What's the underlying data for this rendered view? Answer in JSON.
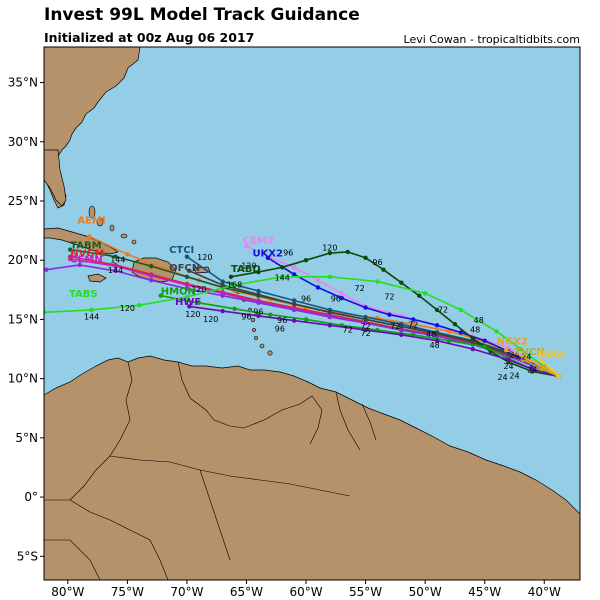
{
  "header": {
    "title": "Invest 99L Model Track Guidance",
    "subtitle": "Initialized at 00z Aug 06 2017",
    "credit": "Levi Cowan - tropicaltidbits.com"
  },
  "colors": {
    "ocean": "#94cde6",
    "land": "#b5926a",
    "border": "#000000"
  },
  "map": {
    "lon_range": [
      -82,
      -37
    ],
    "lat_range": [
      -7,
      38
    ],
    "lon_ticks": [
      {
        "v": -80,
        "label": "80°W"
      },
      {
        "v": -75,
        "label": "75°W"
      },
      {
        "v": -70,
        "label": "70°W"
      },
      {
        "v": -65,
        "label": "65°W"
      },
      {
        "v": -60,
        "label": "60°W"
      },
      {
        "v": -55,
        "label": "55°W"
      },
      {
        "v": -50,
        "label": "50°W"
      },
      {
        "v": -45,
        "label": "45°W"
      },
      {
        "v": -40,
        "label": "40°W"
      }
    ],
    "lat_ticks": [
      {
        "v": 35,
        "label": "35°N"
      },
      {
        "v": 30,
        "label": "30°N"
      },
      {
        "v": 25,
        "label": "25°N"
      },
      {
        "v": 20,
        "label": "20°N"
      },
      {
        "v": 15,
        "label": "15°N"
      },
      {
        "v": 10,
        "label": "10°N"
      },
      {
        "v": 5,
        "label": "5°N"
      },
      {
        "v": 0,
        "label": "0°"
      },
      {
        "v": -5,
        "label": "5°S"
      }
    ]
  },
  "chart_data": {
    "type": "line",
    "xlabel": "",
    "ylabel": "",
    "series": [
      {
        "name": "AEMI",
        "color": "#f07820",
        "lon": [
          -38.8,
          -41,
          -43,
          -45.5,
          -48,
          -51,
          -54,
          -57,
          -60,
          -63,
          -66,
          -69,
          -72,
          -75,
          -78.2
        ],
        "lat": [
          10.2,
          11.3,
          12.3,
          13.3,
          14,
          14.6,
          15.1,
          15.5,
          16,
          16.7,
          17.4,
          18.3,
          19.3,
          20.5,
          22
        ]
      },
      {
        "name": "TABM",
        "color": "#1a5c1a",
        "lon": [
          -38.8,
          -41,
          -43,
          -46,
          -49,
          -52,
          -55,
          -58,
          -61,
          -64,
          -67,
          -70,
          -73,
          -76,
          -79.8
        ],
        "lat": [
          10.2,
          11.2,
          12.2,
          13.2,
          13.9,
          14.4,
          15,
          15.6,
          16.3,
          17,
          17.7,
          18.6,
          19.5,
          20.3,
          20.9
        ]
      },
      {
        "name": "NVGM",
        "color": "#d42a2a",
        "lon": [
          -38.8,
          -41,
          -43,
          -46,
          -49,
          -52,
          -55,
          -58,
          -61,
          -64,
          -67,
          -70,
          -73,
          -76,
          -79.8
        ],
        "lat": [
          10.2,
          11.2,
          12,
          13,
          13.7,
          14.2,
          14.8,
          15.4,
          16,
          16.6,
          17.3,
          18,
          18.8,
          19.6,
          20.3
        ]
      },
      {
        "name": "CEMN",
        "color": "#c020c0",
        "lon": [
          -38.8,
          -41,
          -43,
          -46,
          -49,
          -52,
          -55,
          -58,
          -61,
          -64,
          -67,
          -70,
          -73,
          -76,
          -79.8
        ],
        "lat": [
          10.2,
          11.1,
          11.9,
          12.9,
          13.6,
          14.1,
          14.7,
          15.3,
          15.9,
          16.5,
          17.2,
          17.9,
          18.7,
          19.5,
          20.1
        ]
      },
      {
        "name": "",
        "color": "#8a2be2",
        "lon": [
          -38.8,
          -41,
          -43,
          -46,
          -49,
          -52,
          -55,
          -58,
          -61,
          -64,
          -67,
          -70,
          -73,
          -76,
          -79,
          -81.8
        ],
        "lat": [
          10.2,
          11.1,
          11.9,
          12.9,
          13.6,
          14.1,
          14.7,
          15.2,
          15.8,
          16.4,
          17,
          17.6,
          18.3,
          19.1,
          19.6,
          19.2
        ]
      },
      {
        "name": "CTCI",
        "color": "#105880",
        "lon": [
          -38.8,
          -41,
          -43,
          -46,
          -49,
          -52,
          -55,
          -58,
          -61,
          -64,
          -67,
          -70
        ],
        "lat": [
          10.2,
          11.2,
          12.1,
          13.1,
          13.9,
          14.6,
          15.2,
          15.8,
          16.6,
          17.4,
          18.2,
          20.3
        ]
      },
      {
        "name": "OFCN",
        "color": "#404040",
        "lon": [
          -38.8,
          -41,
          -43,
          -46,
          -49,
          -52,
          -55,
          -58,
          -61,
          -64,
          -67,
          -69.8
        ],
        "lat": [
          10.2,
          11.2,
          12.1,
          13.1,
          13.8,
          14.4,
          15,
          15.6,
          16.3,
          17.1,
          17.9,
          19.1
        ]
      },
      {
        "name": "CEM2",
        "color": "#f080f0",
        "lon": [
          -38.8,
          -41,
          -43,
          -46,
          -49,
          -52,
          -55,
          -57,
          -59,
          -61,
          -63,
          -65
        ],
        "lat": [
          10.2,
          11.4,
          12.6,
          13.6,
          14.5,
          15.3,
          16.1,
          17.2,
          18.3,
          19.4,
          20.2,
          21.2
        ]
      },
      {
        "name": "UKX2",
        "color": "#1010e0",
        "lon": [
          -38.8,
          -41,
          -43,
          -45,
          -47,
          -49,
          -51,
          -53,
          -55,
          -57,
          -59,
          -61,
          -63.2
        ],
        "lat": [
          10.2,
          11.2,
          12.3,
          13.2,
          13.9,
          14.5,
          15,
          15.4,
          16,
          16.8,
          17.7,
          18.8,
          20.2
        ]
      },
      {
        "name": "TABD",
        "color": "#0a4a0a",
        "lon": [
          -38.8,
          -41,
          -43,
          -44.5,
          -46,
          -47.5,
          -49,
          -50.5,
          -52,
          -53.5,
          -55,
          -56.5,
          -58,
          -60,
          -62,
          -64,
          -66.3
        ],
        "lat": [
          10.2,
          10.6,
          11.4,
          12.3,
          13.4,
          14.6,
          15.8,
          17,
          18.1,
          19.2,
          20.2,
          20.7,
          20.6,
          20,
          19.4,
          19,
          18.6
        ]
      },
      {
        "name": "HMON",
        "color": "#10a010",
        "lon": [
          -38.8,
          -41,
          -43,
          -45,
          -48,
          -51,
          -54,
          -57,
          -60,
          -63,
          -66,
          -69,
          -72.2
        ],
        "lat": [
          10.2,
          10.8,
          11.7,
          12.7,
          13.2,
          13.7,
          14.1,
          14.5,
          15,
          15.4,
          15.9,
          16.4,
          17
        ]
      },
      {
        "name": "HWF",
        "color": "#6a0ab0",
        "lon": [
          -38.8,
          -41,
          -43,
          -46,
          -49,
          -52,
          -55,
          -58,
          -61,
          -64,
          -67,
          -69.8
        ],
        "lat": [
          10.2,
          10.8,
          11.6,
          12.5,
          13.2,
          13.7,
          14.1,
          14.5,
          14.9,
          15.3,
          15.7,
          16.1
        ]
      },
      {
        "name": "TABS",
        "color": "#20e020",
        "lon": [
          -38.8,
          -40,
          -42,
          -44,
          -47,
          -50,
          -54,
          -58,
          -62,
          -66,
          -70,
          -74,
          -78,
          -82
        ],
        "lat": [
          10.2,
          11,
          12.5,
          14,
          15.8,
          17.2,
          18.2,
          18.6,
          18.6,
          17.9,
          16.9,
          16.2,
          15.8,
          15.6
        ]
      },
      {
        "name": "NGX2",
        "color": "#f0a020",
        "lon": [
          -38.8,
          -40,
          -41.5,
          -43.2
        ],
        "lat": [
          10.2,
          10.9,
          11.7,
          12.4
        ]
      },
      {
        "name": "TVCN",
        "color": "#b0b020",
        "lon": [
          -38.8,
          -40.2,
          -41.8
        ],
        "lat": [
          10.2,
          10.8,
          11.6
        ]
      },
      {
        "name": "NVGI",
        "color": "#ffc020",
        "lon": [
          -38.8,
          -39.4,
          -40.2
        ],
        "lat": [
          10.2,
          10.8,
          11.5
        ]
      }
    ],
    "model_labels": [
      {
        "text": "AEMI",
        "lon": -79.2,
        "lat": 23.1,
        "color": "#f07820"
      },
      {
        "text": "TABM",
        "lon": -79.8,
        "lat": 21.0,
        "color": "#1a5c1a"
      },
      {
        "text": "NVGM",
        "lon": -79.8,
        "lat": 20.3,
        "color": "#d42a2a"
      },
      {
        "text": "CEMN",
        "lon": -79.8,
        "lat": 19.8,
        "color": "#c020c0"
      },
      {
        "text": "CTCI",
        "lon": -71.5,
        "lat": 20.6,
        "color": "#105880"
      },
      {
        "text": "OFCN",
        "lon": -71.5,
        "lat": 19.1,
        "color": "#404040"
      },
      {
        "text": "CEM2",
        "lon": -65.3,
        "lat": 21.4,
        "color": "#f080f0"
      },
      {
        "text": "UKX2",
        "lon": -64.5,
        "lat": 20.3,
        "color": "#1010e0"
      },
      {
        "text": "TABD",
        "lon": -66.3,
        "lat": 19.0,
        "color": "#0a4a0a"
      },
      {
        "text": "HMON",
        "lon": -72.2,
        "lat": 17.1,
        "color": "#10a010"
      },
      {
        "text": "HWF",
        "lon": -71.0,
        "lat": 16.2,
        "color": "#6a0ab0"
      },
      {
        "text": "TABS",
        "lon": -79.9,
        "lat": 16.9,
        "color": "#20e020"
      },
      {
        "text": "NGX2",
        "lon": -44.0,
        "lat": 12.9,
        "color": "#f0a020"
      },
      {
        "text": "TVCN",
        "lon": -42.5,
        "lat": 12.0,
        "color": "#b0b020"
      },
      {
        "text": "NVGI",
        "lon": -40.6,
        "lat": 11.8,
        "color": "#ffc020"
      }
    ],
    "hour_labels": [
      {
        "text": "144",
        "lon": -75.8,
        "lat": 19.8
      },
      {
        "text": "144",
        "lon": -76.0,
        "lat": 18.9
      },
      {
        "text": "120",
        "lon": -68.5,
        "lat": 20.0
      },
      {
        "text": "120",
        "lon": -64.8,
        "lat": 19.3
      },
      {
        "text": "120",
        "lon": -58.0,
        "lat": 20.8
      },
      {
        "text": "96",
        "lon": -61.5,
        "lat": 20.4
      },
      {
        "text": "96",
        "lon": -54.0,
        "lat": 19.6
      },
      {
        "text": "144",
        "lon": -62.0,
        "lat": 18.3
      },
      {
        "text": "168",
        "lon": -66.0,
        "lat": 17.7
      },
      {
        "text": "72",
        "lon": -55.5,
        "lat": 17.4
      },
      {
        "text": "72",
        "lon": -53.0,
        "lat": 16.7
      },
      {
        "text": "72",
        "lon": -48.5,
        "lat": 15.6
      },
      {
        "text": "96",
        "lon": -60.0,
        "lat": 16.5
      },
      {
        "text": "96",
        "lon": -57.5,
        "lat": 16.5
      },
      {
        "text": "48",
        "lon": -45.5,
        "lat": 14.7
      },
      {
        "text": "48",
        "lon": -45.8,
        "lat": 13.9
      },
      {
        "text": "48",
        "lon": -49.5,
        "lat": 13.5
      },
      {
        "text": "48",
        "lon": -49.2,
        "lat": 12.6
      },
      {
        "text": "72",
        "lon": -55.0,
        "lat": 14.2
      },
      {
        "text": "72",
        "lon": -55.0,
        "lat": 13.6
      },
      {
        "text": "72",
        "lon": -56.5,
        "lat": 13.9
      },
      {
        "text": "72",
        "lon": -52.5,
        "lat": 14.2
      },
      {
        "text": "72",
        "lon": -51.0,
        "lat": 14.3
      },
      {
        "text": "96",
        "lon": -64.0,
        "lat": 15.4
      },
      {
        "text": "96",
        "lon": -62.0,
        "lat": 14.7
      },
      {
        "text": "96",
        "lon": -62.2,
        "lat": 14.0
      },
      {
        "text": "96",
        "lon": -65.0,
        "lat": 15.0
      },
      {
        "text": "120",
        "lon": -69.0,
        "lat": 17.3
      },
      {
        "text": "120",
        "lon": -69.5,
        "lat": 15.2
      },
      {
        "text": "120",
        "lon": -68.0,
        "lat": 14.8
      },
      {
        "text": "120",
        "lon": -75.0,
        "lat": 15.7
      },
      {
        "text": "144",
        "lon": -78.0,
        "lat": 15.0
      },
      {
        "text": "24",
        "lon": -42.5,
        "lat": 11.8
      },
      {
        "text": "24",
        "lon": -41.5,
        "lat": 11.6
      },
      {
        "text": "24",
        "lon": -43.0,
        "lat": 10.8
      },
      {
        "text": "24",
        "lon": -42.5,
        "lat": 10.0
      },
      {
        "text": "24",
        "lon": -43.5,
        "lat": 9.9
      },
      {
        "text": "24",
        "lon": -41.0,
        "lat": 10.5
      }
    ]
  }
}
